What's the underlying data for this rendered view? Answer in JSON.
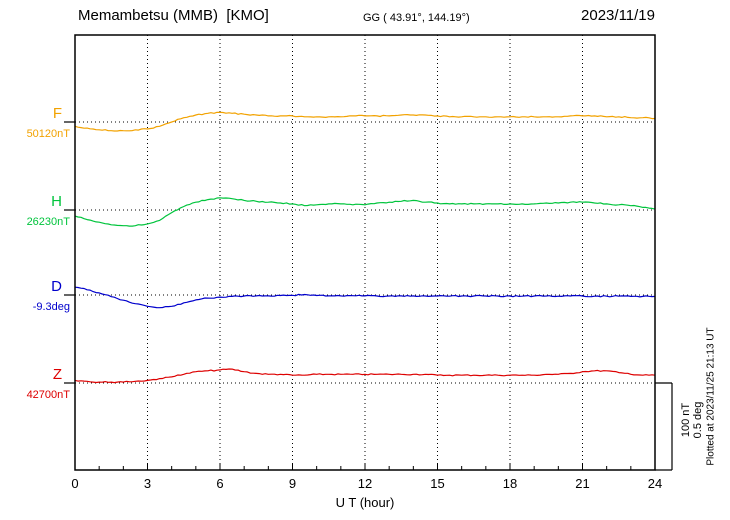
{
  "header": {
    "title": "Memambetsu (MMB)  [KMO]",
    "coords": "GG ( 43.91°, 144.19°)",
    "date": "2023/11/19"
  },
  "footer": {
    "plotted_at": "Plotted at 2023/11/25 21:13 UT"
  },
  "scale": {
    "nT": "100 nT",
    "deg": "0.5 deg"
  },
  "chart_data": {
    "type": "line",
    "title": "Memambetsu (MMB) [KMO] magnetogram 2023/11/19",
    "xlabel": "U T (hour)",
    "xlim": [
      0,
      24
    ],
    "x_ticks": [
      0,
      3,
      6,
      9,
      12,
      15,
      18,
      21,
      24
    ],
    "grid": "vertical-dotted",
    "legend_position": "left",
    "scale_bar": {
      "nT": 100,
      "deg": 0.5
    },
    "x": [
      0,
      0.5,
      1,
      1.5,
      2,
      2.5,
      3,
      3.5,
      4,
      4.5,
      5,
      5.5,
      6,
      6.5,
      7,
      7.5,
      8,
      8.5,
      9,
      9.5,
      10,
      10.5,
      11,
      11.5,
      12,
      12.5,
      13,
      13.5,
      14,
      14.5,
      15,
      15.5,
      16,
      16.5,
      17,
      17.5,
      18,
      18.5,
      19,
      19.5,
      20,
      20.5,
      21,
      21.5,
      22,
      22.5,
      23,
      23.5,
      24
    ],
    "series": [
      {
        "name": "F",
        "unit": "nT",
        "baseline": 50120,
        "baseline_label": "50120nT",
        "color": "#f2a200",
        "values": [
          50115,
          50113,
          50111,
          50110,
          50110,
          50111,
          50112,
          50115,
          50120,
          50125,
          50128,
          50130,
          50131,
          50130,
          50129,
          50128,
          50127,
          50127,
          50127,
          50126,
          50126,
          50126,
          50126,
          50127,
          50127,
          50127,
          50127,
          50128,
          50128,
          50128,
          50127,
          50126,
          50126,
          50126,
          50126,
          50126,
          50126,
          50126,
          50126,
          50126,
          50126,
          50127,
          50127,
          50127,
          50126,
          50126,
          50125,
          50125,
          50124
        ]
      },
      {
        "name": "H",
        "unit": "nT",
        "baseline": 26230,
        "baseline_label": "26230nT",
        "color": "#00c43c",
        "values": [
          26223,
          26219,
          26216,
          26213,
          26212,
          26212,
          26214,
          26218,
          26227,
          26234,
          26239,
          26242,
          26244,
          26243,
          26241,
          26240,
          26239,
          26238,
          26237,
          26235,
          26236,
          26237,
          26237,
          26236,
          26236,
          26238,
          26239,
          26240,
          26241,
          26239,
          26238,
          26237,
          26237,
          26237,
          26237,
          26237,
          26237,
          26237,
          26237,
          26238,
          26238,
          26239,
          26239,
          26238,
          26237,
          26236,
          26235,
          26233,
          26231
        ]
      },
      {
        "name": "D",
        "unit": "deg",
        "baseline": -9.3,
        "baseline_label": "-9.3deg",
        "color": "#0000cc",
        "values": [
          -9.255,
          -9.27,
          -9.288,
          -9.31,
          -9.33,
          -9.35,
          -9.365,
          -9.373,
          -9.365,
          -9.345,
          -9.328,
          -9.318,
          -9.312,
          -9.308,
          -9.306,
          -9.305,
          -9.305,
          -9.303,
          -9.302,
          -9.297,
          -9.303,
          -9.305,
          -9.305,
          -9.304,
          -9.305,
          -9.306,
          -9.306,
          -9.305,
          -9.305,
          -9.306,
          -9.306,
          -9.307,
          -9.306,
          -9.306,
          -9.306,
          -9.306,
          -9.306,
          -9.307,
          -9.306,
          -9.306,
          -9.307,
          -9.306,
          -9.306,
          -9.307,
          -9.307,
          -9.307,
          -9.308,
          -9.308,
          -9.308
        ]
      },
      {
        "name": "Z",
        "unit": "nT",
        "baseline": 42700,
        "baseline_label": "42700nT",
        "color": "#dd0000",
        "values": [
          42703,
          42702,
          42701,
          42701,
          42701,
          42702,
          42703,
          42705,
          42707,
          42710,
          42713,
          42714,
          42715,
          42716,
          42713,
          42711,
          42710,
          42710,
          42709,
          42709,
          42710,
          42710,
          42710,
          42710,
          42710,
          42710,
          42710,
          42710,
          42710,
          42710,
          42709,
          42709,
          42709,
          42709,
          42709,
          42709,
          42709,
          42709,
          42709,
          42710,
          42710,
          42711,
          42713,
          42714,
          42714,
          42712,
          42710,
          42709,
          42709
        ]
      }
    ]
  }
}
